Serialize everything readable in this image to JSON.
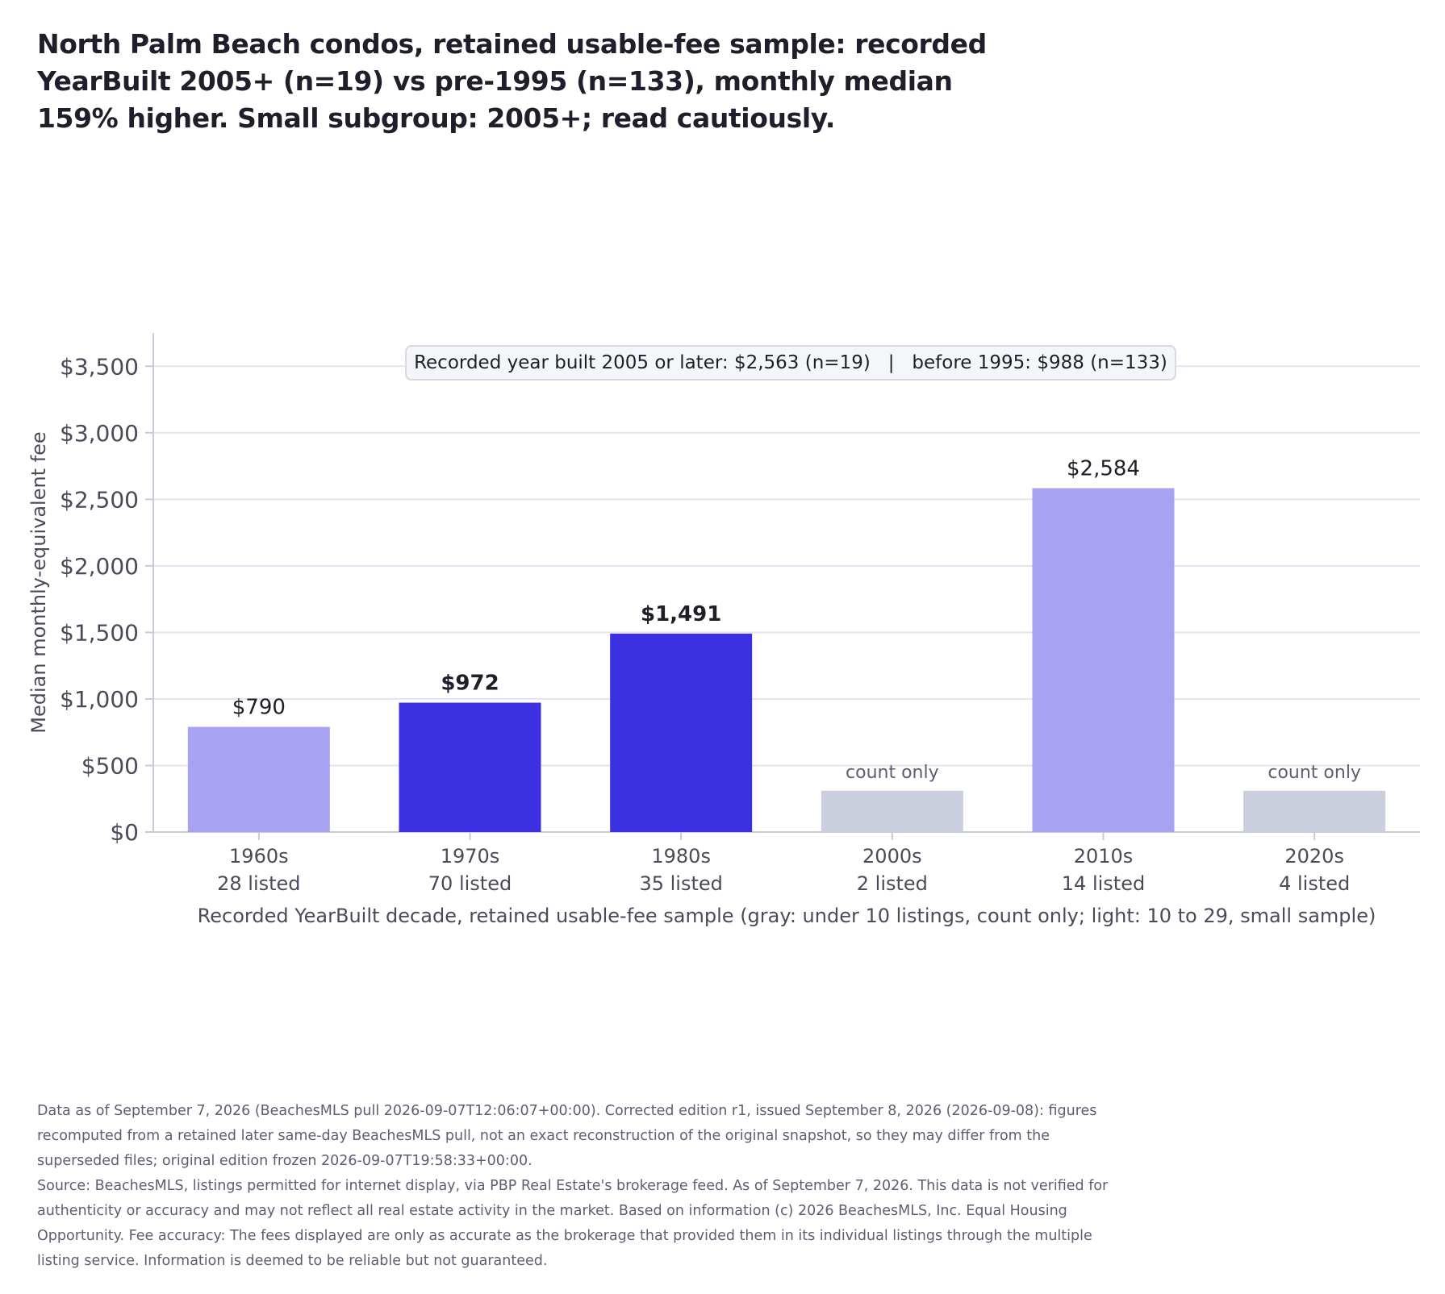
{
  "title": "North Palm Beach condos, retained usable-fee sample: recorded YearBuilt 2005+ (n=19) vs pre-1995 (n=133), monthly median 159% higher. Small subgroup: 2005+; read cautiously.",
  "colors": {
    "established": "#3b30e2",
    "small_sample": "#a7a2f2",
    "count_only": "#cbcedc",
    "grid": "#e3e3f0",
    "axis": "#c9cad6"
  },
  "chart_data": {
    "type": "bar",
    "categories": [
      "1960s",
      "1970s",
      "1980s",
      "2000s",
      "2010s",
      "2020s"
    ],
    "counts_labels": [
      "28 listed",
      "70 listed",
      "35 listed",
      "2 listed",
      "14 listed",
      "4 listed"
    ],
    "counts": [
      28,
      70,
      35,
      2,
      14,
      4
    ],
    "values": [
      790,
      972,
      1491,
      null,
      2584,
      null
    ],
    "bar_styles": [
      "small_sample",
      "established",
      "established",
      "count_only",
      "small_sample",
      "count_only"
    ],
    "value_labels": [
      "$790",
      "$972",
      "$1,491",
      "count only",
      "$2,584",
      "count only"
    ],
    "count_only_bar_height": 310,
    "ylabel": "Median monthly-equivalent fee",
    "xlabel": "Recorded YearBuilt decade, retained usable-fee sample (gray: under 10 listings, count only; light: 10 to 29, small sample)",
    "ylim": [
      0,
      3750
    ],
    "yticks": [
      0,
      500,
      1000,
      1500,
      2000,
      2500,
      3000,
      3500
    ],
    "ytick_labels": [
      "$0",
      "$500",
      "$1,000",
      "$1,500",
      "$2,000",
      "$2,500",
      "$3,000",
      "$3,500"
    ],
    "grid": true,
    "summary_annotation": "Recorded year built 2005 or later: $2,563 (n=19)   |   before 1995: $988 (n=133)"
  },
  "footer": {
    "line1": "Data as of September 7, 2026 (BeachesMLS pull 2026-09-07T12:06:07+00:00). Corrected edition r1, issued September 8, 2026 (2026-09-08): figures recomputed from a retained later same-day BeachesMLS pull, not an exact reconstruction of the original snapshot, so they may differ from the superseded files; original edition frozen 2026-09-07T19:58:33+00:00.",
    "line2": "Source: BeachesMLS, listings permitted for internet display, via PBP Real Estate's brokerage feed. As of September 7, 2026. This data is not verified for authenticity or accuracy and may not reflect all real estate activity in the market. Based on information (c) 2026 BeachesMLS, Inc. Equal Housing Opportunity. Fee accuracy: The fees displayed are only as accurate as the brokerage that provided them in its individual listings through the multiple listing service. Information is deemed to be reliable but not guaranteed."
  }
}
